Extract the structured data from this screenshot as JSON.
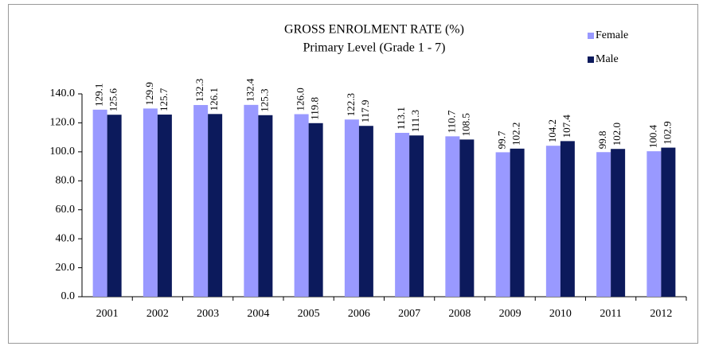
{
  "chart_data": {
    "type": "bar",
    "title": "GROSS ENROLMENT RATE (%)",
    "subtitle": "Primary Level (Grade 1 - 7)",
    "categories": [
      "2001",
      "2002",
      "2003",
      "2004",
      "2005",
      "2006",
      "2007",
      "2008",
      "2009",
      "2010",
      "2011",
      "2012"
    ],
    "series": [
      {
        "name": "Female",
        "color": "#9999ff",
        "values": [
          129.1,
          129.9,
          132.3,
          132.4,
          126.0,
          122.3,
          113.1,
          110.7,
          99.7,
          104.2,
          99.8,
          100.4
        ],
        "value_labels": [
          "129.1",
          "129.9",
          "132.3",
          "132.4",
          "126.0",
          "122.3",
          "113.1",
          "110.7",
          "99.7",
          "104.2",
          "99.8",
          "100.4"
        ]
      },
      {
        "name": "Male",
        "color": "#0c1a5c",
        "values": [
          125.6,
          125.7,
          126.1,
          125.3,
          119.8,
          117.9,
          111.3,
          108.5,
          102.2,
          107.4,
          102.0,
          102.9
        ],
        "value_labels": [
          "125.6",
          "125.7",
          "126.1",
          "125.3",
          "119.8",
          "117.9",
          "111.3",
          "108.5",
          "102.2",
          "107.4",
          "102.0",
          "102.9"
        ]
      }
    ],
    "ylim": [
      0,
      140
    ],
    "yticks": [
      {
        "value": 0,
        "label": "0.0"
      },
      {
        "value": 20,
        "label": "20.0"
      },
      {
        "value": 40,
        "label": "40.0"
      },
      {
        "value": 60,
        "label": "60.0"
      },
      {
        "value": 80,
        "label": "80.0"
      },
      {
        "value": 100,
        "label": "100.0"
      },
      {
        "value": 120,
        "label": "120.0"
      },
      {
        "value": 140,
        "label": "140.0"
      }
    ],
    "legend": "upper right"
  }
}
